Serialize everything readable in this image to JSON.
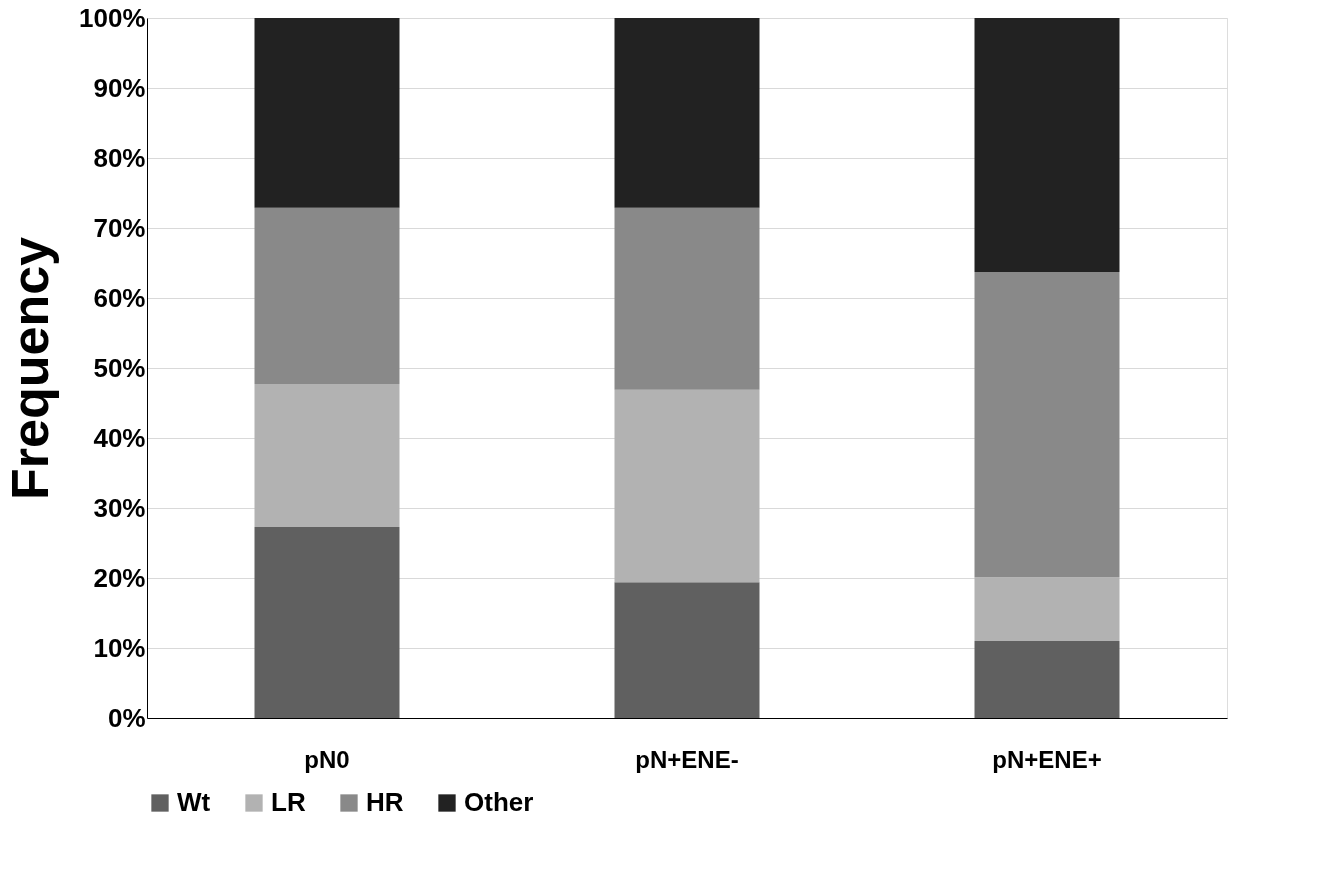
{
  "chart_data": {
    "type": "bar",
    "stacked": true,
    "ylabel": "Frequency",
    "categories": [
      "pN0",
      "pN+ENE-",
      "pN+ENE+"
    ],
    "series": [
      {
        "name": "Wt",
        "color": "#606060",
        "values": [
          27.3,
          19.4,
          11.0
        ]
      },
      {
        "name": "LR",
        "color": "#b2b2b2",
        "values": [
          20.4,
          27.5,
          9.1
        ]
      },
      {
        "name": "HR",
        "color": "#898989",
        "values": [
          25.2,
          26.0,
          43.6
        ]
      },
      {
        "name": "Other",
        "color": "#222222",
        "values": [
          27.1,
          27.1,
          36.3
        ]
      }
    ],
    "ylim": [
      0,
      100
    ],
    "yticks": [
      {
        "value": 0,
        "label": "0%"
      },
      {
        "value": 10,
        "label": "10%"
      },
      {
        "value": 20,
        "label": "20%"
      },
      {
        "value": 30,
        "label": "30%"
      },
      {
        "value": 40,
        "label": "40%"
      },
      {
        "value": 50,
        "label": "50%"
      },
      {
        "value": 60,
        "label": "60%"
      },
      {
        "value": 70,
        "label": "70%"
      },
      {
        "value": 80,
        "label": "80%"
      },
      {
        "value": 90,
        "label": "90%"
      },
      {
        "value": 100,
        "label": "100%"
      }
    ],
    "grid": "y",
    "legend": "bottom"
  }
}
